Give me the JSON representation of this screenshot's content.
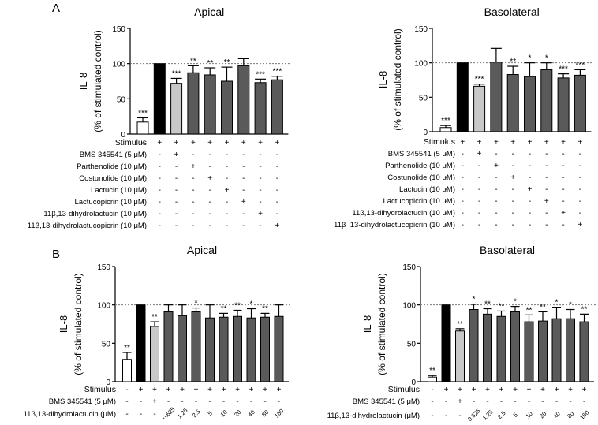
{
  "colors": {
    "black": "#000000",
    "dark_gray": "#5a5a5a",
    "light_gray": "#c8c8c8",
    "white": "#ffffff",
    "dashed": "#777777"
  },
  "panel_labels": [
    "A",
    "B"
  ],
  "chart_data": [
    {
      "id": "A-apical",
      "type": "bar",
      "panel": "A",
      "title": "Apical",
      "ylabel_line1": "IL-8",
      "ylabel_line2": "(% of stimulated control)",
      "ylim": [
        0,
        150
      ],
      "yticks": [
        "0",
        "50",
        "100",
        "150"
      ],
      "reference_line": 100,
      "values": [
        17,
        100,
        72,
        87,
        84,
        75,
        97,
        73,
        77
      ],
      "errors": [
        6,
        0,
        7,
        10,
        10,
        20,
        10,
        5,
        5
      ],
      "fills": [
        "white",
        "black",
        "light_gray",
        "dark_gray",
        "dark_gray",
        "dark_gray",
        "dark_gray",
        "dark_gray",
        "dark_gray"
      ],
      "significance": [
        "***",
        "",
        "***",
        "**",
        "**",
        "**",
        "",
        "***",
        "***"
      ],
      "condition_rows": [
        {
          "label": "Stimulus",
          "signs": [
            "-",
            "+",
            "+",
            "+",
            "+",
            "+",
            "+",
            "+",
            "+"
          ]
        },
        {
          "label": "BMS 345541 (5 μM)",
          "signs": [
            "-",
            "-",
            "+",
            "-",
            "-",
            "-",
            "-",
            "-",
            "-"
          ]
        },
        {
          "label": "Parthenolide (10 μM)",
          "signs": [
            "-",
            "-",
            "-",
            "+",
            "-",
            "-",
            "-",
            "-",
            "-"
          ]
        },
        {
          "label": "Costunolide (10 μM)",
          "signs": [
            "-",
            "-",
            "-",
            "-",
            "+",
            "-",
            "-",
            "-",
            "-"
          ]
        },
        {
          "label": "Lactucin (10 μM)",
          "signs": [
            "-",
            "-",
            "-",
            "-",
            "-",
            "+",
            "-",
            "-",
            "-"
          ]
        },
        {
          "label": "Lactucopicrin (10 μM)",
          "signs": [
            "-",
            "-",
            "-",
            "-",
            "-",
            "-",
            "+",
            "-",
            "-"
          ]
        },
        {
          "label": "11β,13-dihydrolactucin (10 μM)",
          "signs": [
            "-",
            "-",
            "-",
            "-",
            "-",
            "-",
            "-",
            "+",
            "-"
          ]
        },
        {
          "label": "11β,13-dihydrolactucopicrin (10 μM)",
          "signs": [
            "-",
            "-",
            "-",
            "-",
            "-",
            "-",
            "-",
            "-",
            "+"
          ]
        }
      ],
      "dose_labels": []
    },
    {
      "id": "A-basolateral",
      "type": "bar",
      "panel": "A",
      "title": "Basolateral",
      "ylabel_line1": "IL-8",
      "ylabel_line2": "(% of stimulated control)",
      "ylim": [
        0,
        150
      ],
      "yticks": [
        "0",
        "50",
        "100",
        "150"
      ],
      "reference_line": 100,
      "values": [
        6,
        100,
        66,
        101,
        83,
        80,
        90,
        78,
        82
      ],
      "errors": [
        3,
        0,
        3,
        20,
        12,
        20,
        10,
        6,
        8
      ],
      "fills": [
        "white",
        "black",
        "light_gray",
        "dark_gray",
        "dark_gray",
        "dark_gray",
        "dark_gray",
        "dark_gray",
        "dark_gray"
      ],
      "significance": [
        "***",
        "",
        "***",
        "",
        "**",
        "*",
        "*",
        "***",
        "***"
      ],
      "condition_rows": [
        {
          "label": "Stimulus",
          "signs": [
            "-",
            "+",
            "+",
            "+",
            "+",
            "+",
            "+",
            "+",
            "+"
          ]
        },
        {
          "label": "BMS 345541 (5 μM)",
          "signs": [
            "-",
            "-",
            "+",
            "-",
            "-",
            "-",
            "-",
            "-",
            "-"
          ]
        },
        {
          "label": "Parthenolide (10 μM)",
          "signs": [
            "-",
            "-",
            "-",
            "+",
            "-",
            "-",
            "-",
            "-",
            "-"
          ]
        },
        {
          "label": "Costunolide (10 μM)",
          "signs": [
            "-",
            "-",
            "-",
            "-",
            "+",
            "-",
            "-",
            "-",
            "-"
          ]
        },
        {
          "label": "Lactucin (10 μM)",
          "signs": [
            "-",
            "-",
            "-",
            "-",
            "-",
            "+",
            "-",
            "-",
            "-"
          ]
        },
        {
          "label": "Lactucopicrin (10 μM)",
          "signs": [
            "-",
            "-",
            "-",
            "-",
            "-",
            "-",
            "+",
            "-",
            "-"
          ]
        },
        {
          "label": "11β,13-dihydrolactucin (10 μM)",
          "signs": [
            "-",
            "-",
            "-",
            "-",
            "-",
            "-",
            "-",
            "+",
            "-"
          ]
        },
        {
          "label": "11β ,13-dihydrolactucopicrin (10  μM)",
          "signs": [
            "-",
            "-",
            "-",
            "-",
            "-",
            "-",
            "-",
            "-",
            "+"
          ]
        }
      ],
      "dose_labels": []
    },
    {
      "id": "B-apical",
      "type": "bar",
      "panel": "B",
      "title": "Apical",
      "ylabel_line1": "IL-8",
      "ylabel_line2": "(% of stimulated control)",
      "ylim": [
        0,
        150
      ],
      "yticks": [
        "0",
        "50",
        "100",
        "150"
      ],
      "reference_line": 100,
      "values": [
        29,
        100,
        72,
        91,
        86,
        91,
        83,
        84,
        85,
        83,
        84,
        85
      ],
      "errors": [
        9,
        0,
        6,
        9,
        14,
        5,
        17,
        5,
        8,
        12,
        5,
        15
      ],
      "fills": [
        "white",
        "black",
        "light_gray",
        "dark_gray",
        "dark_gray",
        "dark_gray",
        "dark_gray",
        "dark_gray",
        "dark_gray",
        "dark_gray",
        "dark_gray",
        "dark_gray"
      ],
      "significance": [
        "**",
        "",
        "**",
        "",
        "",
        "*",
        "",
        "**",
        "**",
        "*",
        "**",
        ""
      ],
      "condition_rows": [
        {
          "label": "Stimulus",
          "signs": [
            "-",
            "+",
            "+",
            "+",
            "+",
            "+",
            "+",
            "+",
            "+",
            "+",
            "+",
            "+"
          ]
        },
        {
          "label": "BMS 345541 (5 μM)",
          "signs": [
            "-",
            "-",
            "+",
            "-",
            "-",
            "-",
            "-",
            "-",
            "-",
            "-",
            "-",
            "-"
          ]
        }
      ],
      "dose_row_label": "11β,13-dihydrolactucin (μM)",
      "dose_signs": [
        "-",
        "-",
        "-"
      ],
      "dose_labels": [
        "0.625",
        "1.25",
        "2.5",
        "5",
        "10",
        "20",
        "40",
        "80",
        "160"
      ]
    },
    {
      "id": "B-basolateral",
      "type": "bar",
      "panel": "B",
      "title": "Basolateral",
      "ylabel_line1": "IL-8",
      "ylabel_line2": "(% of stimulated control)",
      "ylim": [
        0,
        150
      ],
      "yticks": [
        "0",
        "50",
        "100",
        "150"
      ],
      "reference_line": 100,
      "values": [
        6,
        100,
        66,
        94,
        88,
        85,
        91,
        78,
        79,
        82,
        82,
        78
      ],
      "errors": [
        2,
        0,
        3,
        7,
        7,
        7,
        7,
        9,
        12,
        15,
        12,
        10
      ],
      "fills": [
        "white",
        "black",
        "light_gray",
        "dark_gray",
        "dark_gray",
        "dark_gray",
        "dark_gray",
        "dark_gray",
        "dark_gray",
        "dark_gray",
        "dark_gray",
        "dark_gray"
      ],
      "significance": [
        "**",
        "",
        "**",
        "*",
        "**",
        "**",
        "*",
        "**",
        "**",
        "*",
        "*",
        "**"
      ],
      "condition_rows": [
        {
          "label": "Stimulus",
          "signs": [
            "-",
            "+",
            "+",
            "+",
            "+",
            "+",
            "+",
            "+",
            "+",
            "+",
            "+",
            "+"
          ]
        },
        {
          "label": "BMS 345541 (5 μM)",
          "signs": [
            "-",
            "-",
            "+",
            "-",
            "-",
            "-",
            "-",
            "-",
            "-",
            "-",
            "-",
            "-"
          ]
        }
      ],
      "dose_row_label": "11β,13-dihydrolactucin (μM)",
      "dose_signs": [
        "-",
        "-",
        "-"
      ],
      "dose_labels": [
        "0.625",
        "1.25",
        "2.5",
        "5",
        "10",
        "20",
        "40",
        "80",
        "160"
      ]
    }
  ]
}
